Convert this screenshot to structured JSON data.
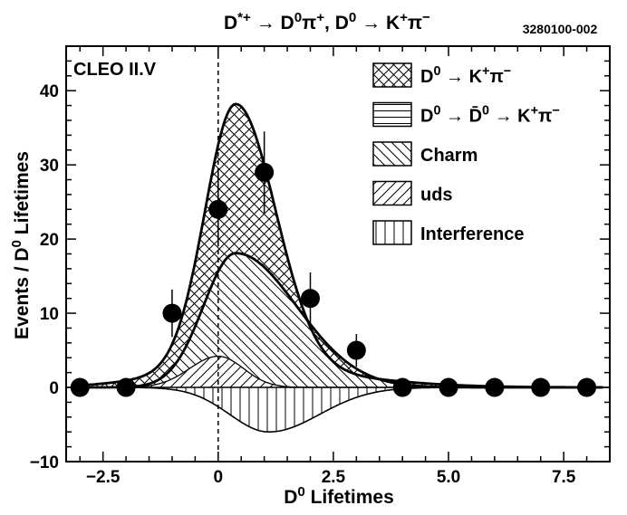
{
  "chart_data": {
    "type": "scatter",
    "title": "D*+ → D0π+, D0 → K+π−",
    "figure_id": "3280100-002",
    "experiment_label": "CLEO II.V",
    "xlabel": "D0 Lifetimes",
    "ylabel": "Events / D0 Lifetimes",
    "xlim": [
      -3.3,
      8.5
    ],
    "ylim": [
      -10,
      46
    ],
    "xticks": [
      {
        "value": -2.5,
        "label": "−2.5"
      },
      {
        "value": 0,
        "label": "0"
      },
      {
        "value": 2.5,
        "label": "2.5"
      },
      {
        "value": 5,
        "label": "5.0"
      },
      {
        "value": 7.5,
        "label": "7.5"
      }
    ],
    "yticks": [
      {
        "value": -10,
        "label": "−10"
      },
      {
        "value": 0,
        "label": "0"
      },
      {
        "value": 10,
        "label": "10"
      },
      {
        "value": 20,
        "label": "20"
      },
      {
        "value": 30,
        "label": "30"
      },
      {
        "value": 40,
        "label": "40"
      }
    ],
    "data_points": [
      {
        "x": -3,
        "y": 0,
        "err": 0
      },
      {
        "x": -2,
        "y": 0,
        "err": 0
      },
      {
        "x": -1,
        "y": 10,
        "err": 3.2
      },
      {
        "x": 0,
        "y": 24,
        "err": 5
      },
      {
        "x": 1,
        "y": 29,
        "err": 5.5
      },
      {
        "x": 2,
        "y": 12,
        "err": 3.5
      },
      {
        "x": 3,
        "y": 5,
        "err": 2.2
      },
      {
        "x": 4,
        "y": 0,
        "err": 0
      },
      {
        "x": 5,
        "y": 0,
        "err": 0
      },
      {
        "x": 6,
        "y": 0,
        "err": 0
      },
      {
        "x": 7,
        "y": 0,
        "err": 0
      },
      {
        "x": 8,
        "y": 0,
        "err": 0
      }
    ],
    "components": {
      "dcsd_peak": 38.2,
      "charm_peak": 18.1,
      "uds_peak": 4.2,
      "interference_min": -6
    },
    "legend": [
      {
        "pattern": "crosshatch",
        "label": "D0 → K+π−",
        "name": "dcsd"
      },
      {
        "pattern": "horizontal",
        "label": "D0 → D̄0 → K+π−",
        "name": "mixing"
      },
      {
        "pattern": "backslash",
        "label": "Charm",
        "name": "charm"
      },
      {
        "pattern": "slash",
        "label": "uds",
        "name": "uds"
      },
      {
        "pattern": "vertical",
        "label": "Interference",
        "name": "interference"
      }
    ]
  }
}
